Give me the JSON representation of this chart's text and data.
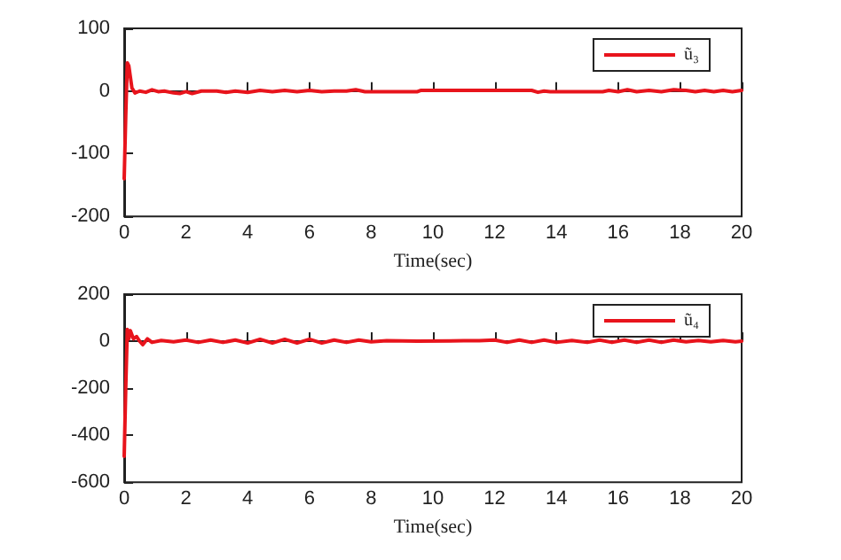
{
  "chart_data": [
    {
      "type": "line",
      "xlabel": "Time(sec)",
      "xlim": [
        0,
        20
      ],
      "xticks": [
        0,
        2,
        4,
        6,
        8,
        10,
        12,
        14,
        16,
        18,
        20
      ],
      "ylim": [
        -200,
        100
      ],
      "yticks": [
        -200,
        -100,
        0,
        100
      ],
      "legend": "top right",
      "marker": "none",
      "line_style": "solid",
      "series": [
        {
          "name": "ũ₃",
          "color": "#e8141c",
          "x": [
            0,
            0.05,
            0.1,
            0.15,
            0.25,
            0.35,
            0.5,
            0.7,
            0.9,
            1.1,
            1.3,
            1.6,
            1.8,
            2,
            2.2,
            2.5,
            3,
            3.3,
            3.6,
            4,
            4.4,
            4.8,
            5.2,
            5.6,
            6,
            6.4,
            6.8,
            7.2,
            7.5,
            7.8,
            8.5,
            9.5,
            9.6,
            10.5,
            12,
            13.2,
            13.4,
            13.6,
            13.8,
            14.5,
            15.5,
            15.7,
            16,
            16.3,
            16.6,
            17,
            17.4,
            17.8,
            18.2,
            18.5,
            18.8,
            19.1,
            19.4,
            19.7,
            20
          ],
          "values": [
            -140,
            -40,
            45,
            40,
            5,
            -3,
            0,
            -2,
            2,
            -1,
            0,
            -3,
            -4,
            -1,
            -4,
            0,
            0,
            -2,
            0,
            -2,
            1,
            -1,
            1,
            -1,
            1,
            -1,
            0,
            0,
            2,
            -1,
            -1,
            -1,
            1,
            1,
            1,
            1,
            -2,
            0,
            -1,
            -1,
            -1,
            1,
            -1,
            2,
            -1,
            1,
            -1,
            2,
            1,
            -1,
            1,
            -1,
            1,
            -1,
            1
          ]
        }
      ]
    },
    {
      "type": "line",
      "xlabel": "Time(sec)",
      "xlim": [
        0,
        20
      ],
      "xticks": [
        0,
        2,
        4,
        6,
        8,
        10,
        12,
        14,
        16,
        18,
        20
      ],
      "ylim": [
        -600,
        200
      ],
      "yticks": [
        -600,
        -400,
        -200,
        0,
        200
      ],
      "legend": "top right",
      "marker": "none",
      "line_style": "solid",
      "series": [
        {
          "name": "ũ₄",
          "color": "#e8141c",
          "x": [
            0,
            0.05,
            0.1,
            0.15,
            0.2,
            0.3,
            0.4,
            0.5,
            0.6,
            0.75,
            0.9,
            1.2,
            1.6,
            2,
            2.4,
            2.8,
            3.2,
            3.6,
            4,
            4.4,
            4.8,
            5.2,
            5.6,
            6,
            6.4,
            6.8,
            7.2,
            7.6,
            8,
            8.5,
            9.5,
            11,
            11.5,
            12,
            12.4,
            12.8,
            13.2,
            13.6,
            14,
            14.5,
            15,
            15.4,
            15.8,
            16.2,
            16.6,
            17,
            17.4,
            17.8,
            18.2,
            18.6,
            19,
            19.4,
            19.8,
            20
          ],
          "values": [
            -490,
            -200,
            50,
            10,
            45,
            10,
            20,
            0,
            -15,
            10,
            -5,
            3,
            -3,
            5,
            -5,
            5,
            -5,
            5,
            -8,
            8,
            -8,
            8,
            -8,
            8,
            -8,
            5,
            -5,
            5,
            -3,
            2,
            0,
            2,
            2,
            5,
            -5,
            5,
            -5,
            5,
            -5,
            3,
            -5,
            5,
            -5,
            5,
            -5,
            5,
            -5,
            5,
            -3,
            3,
            -3,
            3,
            -3,
            0
          ]
        }
      ]
    }
  ]
}
